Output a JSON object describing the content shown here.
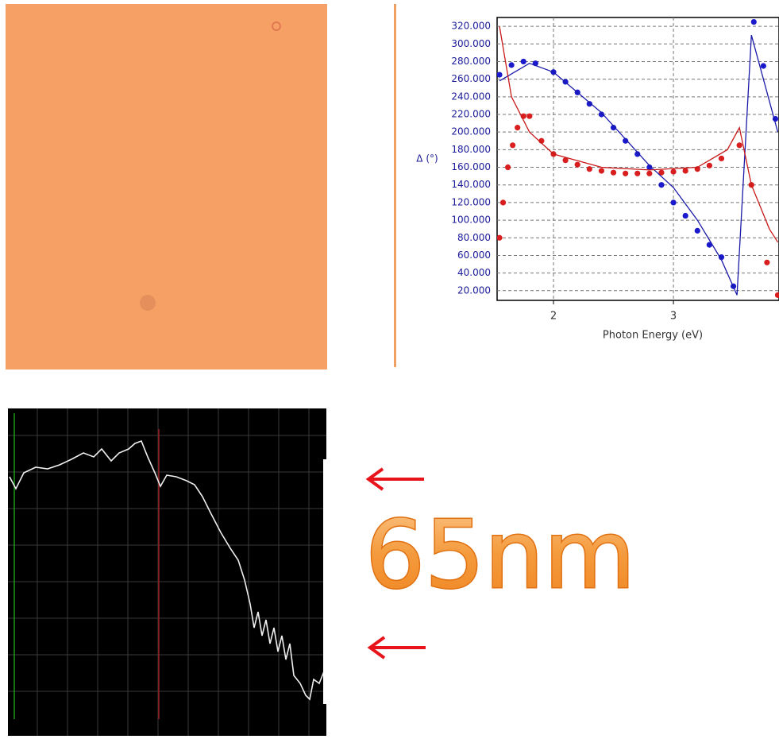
{
  "chart_data": {
    "type": "scatter",
    "y_label": "Δ (°)",
    "x_label": "Photon Energy (eV)",
    "xlim": [
      1.53,
      3.88
    ],
    "ylim": [
      9,
      330
    ],
    "xticks": [
      2,
      3
    ],
    "yticks": [
      {
        "value": 20,
        "label": "20.000"
      },
      {
        "value": 40,
        "label": "40.000"
      },
      {
        "value": 60,
        "label": "60.000"
      },
      {
        "value": 80,
        "label": "80.000"
      },
      {
        "value": 100,
        "label": "100.000"
      },
      {
        "value": 120,
        "label": "120.000"
      },
      {
        "value": 140,
        "label": "140.000"
      },
      {
        "value": 160,
        "label": "160.000"
      },
      {
        "value": 180,
        "label": "180.000"
      },
      {
        "value": 200,
        "label": "200.000"
      },
      {
        "value": 220,
        "label": "220.000"
      },
      {
        "value": 240,
        "label": "240.000"
      },
      {
        "value": 260,
        "label": "260.000"
      },
      {
        "value": 280,
        "label": "280.000"
      },
      {
        "value": 300,
        "label": "300.000"
      },
      {
        "value": 320,
        "label": "320.000"
      }
    ],
    "grid": true,
    "series": [
      {
        "style": "markers",
        "color": "#1a1acc",
        "x": [
          1.55,
          1.65,
          1.75,
          1.85,
          2.0,
          2.1,
          2.2,
          2.3,
          2.4,
          2.5,
          2.6,
          2.7,
          2.8,
          2.9,
          3.0,
          3.1,
          3.2,
          3.3,
          3.4,
          3.5,
          3.67,
          3.75,
          3.85
        ],
        "values": [
          265,
          276,
          280,
          278,
          268,
          257,
          245,
          232,
          220,
          205,
          190,
          175,
          160,
          140,
          120,
          105,
          88,
          72,
          58,
          25,
          325,
          275,
          215
        ]
      },
      {
        "style": "markers",
        "color": "#d81e1e",
        "x": [
          1.55,
          1.58,
          1.62,
          1.66,
          1.7,
          1.75,
          1.8,
          1.9,
          2.0,
          2.1,
          2.2,
          2.3,
          2.4,
          2.5,
          2.6,
          2.7,
          2.8,
          2.9,
          3.0,
          3.1,
          3.2,
          3.3,
          3.4,
          3.55,
          3.65,
          3.78,
          3.87
        ],
        "values": [
          80,
          120,
          160,
          185,
          205,
          218,
          218,
          190,
          175,
          168,
          163,
          158,
          156,
          154,
          153,
          153,
          153,
          154,
          155,
          156,
          158,
          162,
          170,
          185,
          140,
          52,
          15
        ]
      },
      {
        "style": "line",
        "color": "#1a1aaa",
        "x": [
          1.55,
          1.8,
          2.0,
          2.4,
          2.8,
          3.0,
          3.2,
          3.4,
          3.53,
          3.65,
          3.87
        ],
        "values": [
          258,
          278,
          268,
          222,
          162,
          137,
          100,
          55,
          15,
          310,
          200
        ]
      },
      {
        "style": "line",
        "color": "#c81a1a",
        "x": [
          1.55,
          1.65,
          1.8,
          2.0,
          2.4,
          2.8,
          3.2,
          3.45,
          3.55,
          3.65,
          3.8,
          3.87
        ],
        "values": [
          320,
          240,
          200,
          175,
          160,
          157,
          160,
          180,
          205,
          140,
          90,
          75
        ]
      }
    ]
  },
  "thickness_label": "65nm"
}
